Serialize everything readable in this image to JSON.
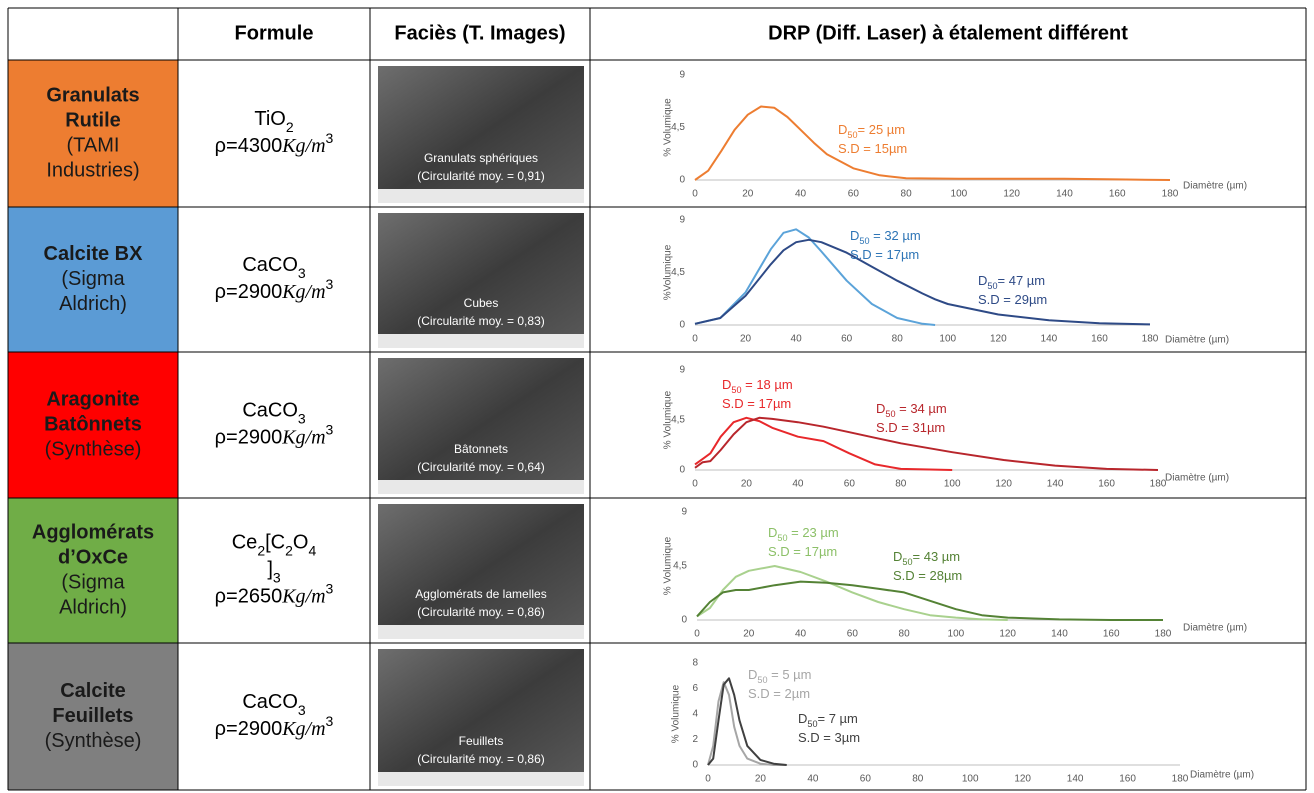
{
  "header": {
    "formula": "Formule",
    "facies": "Faciès (T. Images)",
    "drp": "DRP (Diff. Laser) à étalement différent"
  },
  "rows": [
    {
      "color": "#ed7d31",
      "name": [
        {
          "text": "Granulats",
          "bold": true
        },
        {
          "text": "Rutile",
          "bold": true
        },
        {
          "text": "(TAMI"
        },
        {
          "text": "Industries)"
        }
      ],
      "formula": [
        [
          {
            "text": "TiO"
          },
          {
            "text": "2",
            "sub": true
          }
        ]
      ],
      "density": [
        {
          "text": "ρ=4300"
        },
        {
          "text": "Kg/m",
          "italic": true
        },
        {
          "text": "3",
          "sup": true
        }
      ],
      "image_caption": [
        "Granulats sphériques",
        "(Circularité moy. = 0,91)"
      ],
      "chart": {
        "type": "line",
        "ylabel": "% Volumique",
        "xlabel": "Diamètre (µm)",
        "xlim": [
          0,
          180
        ],
        "xticks": [
          0,
          20,
          40,
          60,
          80,
          100,
          120,
          140,
          160,
          180
        ],
        "ylim": [
          0,
          9
        ],
        "yticks": [
          0,
          {
            "value": 4.5,
            "label": "4,5"
          },
          9
        ],
        "x": [
          0,
          5,
          10,
          15,
          20,
          25,
          30,
          35,
          40,
          45,
          50,
          60,
          70,
          80,
          100,
          120,
          140,
          160,
          180
        ],
        "series": [
          {
            "color": "#ed7d31",
            "values": [
              0,
              0.8,
              2.5,
              4.3,
              5.6,
              6.3,
              6.2,
              5.4,
              4.3,
              3.2,
              2.2,
              1.0,
              0.4,
              0.15,
              0.1,
              0.1,
              0.1,
              0.05,
              0
            ]
          }
        ],
        "annotations": [
          {
            "color": "#ed7d31",
            "lines": [
              [
                {
                  "text": "D"
                },
                {
                  "text": "50",
                  "sub": true
                },
                {
                  "text": "= 25 µm"
                }
              ],
              [
                {
                  "text": "S.D = 15µm"
                }
              ]
            ]
          }
        ]
      }
    },
    {
      "color": "#5b9bd5",
      "name": [
        {
          "text": "Calcite BX",
          "bold": true
        },
        {
          "text": "(Sigma"
        },
        {
          "text": "Aldrich)"
        }
      ],
      "formula": [
        [
          {
            "text": "CaCO"
          },
          {
            "text": "3",
            "sub": true
          }
        ]
      ],
      "density": [
        {
          "text": "ρ=2900"
        },
        {
          "text": "Kg/m",
          "italic": true
        },
        {
          "text": "3",
          "sup": true
        }
      ],
      "image_caption": [
        "Cubes",
        "(Circularité moy. = 0,83)"
      ],
      "chart": {
        "type": "line",
        "ylabel": "%Volumique",
        "xlabel": "Diamètre (µm)",
        "xlim": [
          0,
          180
        ],
        "xticks": [
          0,
          20,
          40,
          60,
          80,
          100,
          120,
          140,
          160,
          180
        ],
        "ylim": [
          0,
          9
        ],
        "yticks": [
          0,
          {
            "value": 4.5,
            "label": "4,5"
          },
          9
        ],
        "x": [
          0,
          10,
          20,
          30,
          35,
          40,
          45,
          50,
          60,
          70,
          80,
          90,
          95,
          100,
          120,
          140,
          160,
          180
        ],
        "series": [
          {
            "color": "#5ba3d9",
            "values": [
              0.1,
              0.6,
              2.8,
              6.5,
              7.9,
              8.2,
              7.5,
              6.3,
              3.8,
              1.8,
              0.6,
              0.1,
              0,
              null,
              null,
              null,
              null,
              null
            ]
          },
          {
            "color": "#2e4a86",
            "values": [
              0.1,
              0.6,
              2.5,
              5.2,
              6.4,
              7.1,
              7.3,
              7.1,
              6.2,
              5.0,
              3.8,
              2.7,
              2.2,
              1.8,
              0.9,
              0.4,
              0.15,
              0.05
            ]
          }
        ],
        "annotations": [
          {
            "color": "#2e75b6",
            "lines": [
              [
                {
                  "text": "D"
                },
                {
                  "text": "50",
                  "sub": true
                },
                {
                  "text": " = 32 µm"
                }
              ],
              [
                {
                  "text": "S.D = 17µm"
                }
              ]
            ]
          },
          {
            "color": "#2e4a86",
            "lines": [
              [
                {
                  "text": "D"
                },
                {
                  "text": "50",
                  "sub": true
                },
                {
                  "text": "= 47 µm"
                }
              ],
              [
                {
                  "text": "S.D = 29µm"
                }
              ]
            ]
          }
        ]
      }
    },
    {
      "color": "#ff0000",
      "name": [
        {
          "text": "Aragonite",
          "bold": true
        },
        {
          "text": "Batônnets",
          "bold": true
        },
        {
          "text": "(Synthèse)"
        }
      ],
      "formula": [
        [
          {
            "text": "CaCO"
          },
          {
            "text": "3",
            "sub": true
          }
        ]
      ],
      "density": [
        {
          "text": "ρ=2900"
        },
        {
          "text": "Kg/m",
          "italic": true
        },
        {
          "text": "3",
          "sup": true
        }
      ],
      "image_caption": [
        "Bâtonnets",
        "(Circularité moy. = 0,64)"
      ],
      "chart": {
        "type": "line",
        "ylabel": "% Volumique",
        "xlabel": "Diamètre (µm)",
        "xlim": [
          0,
          180
        ],
        "xticks": [
          0,
          20,
          40,
          60,
          80,
          100,
          120,
          140,
          160,
          180
        ],
        "ylim": [
          0,
          9
        ],
        "yticks": [
          0,
          {
            "value": 4.5,
            "label": "4,5"
          },
          9
        ],
        "x": [
          0,
          3,
          6,
          10,
          15,
          20,
          25,
          30,
          40,
          50,
          60,
          70,
          80,
          100,
          120,
          140,
          160,
          180
        ],
        "series": [
          {
            "color": "#e8282b",
            "values": [
              0.5,
              1.0,
              1.5,
              3.0,
              4.3,
              4.7,
              4.4,
              3.8,
              3.0,
              2.6,
              1.5,
              0.5,
              0.1,
              0,
              null,
              null,
              null,
              null
            ]
          },
          {
            "color": "#b8262c",
            "values": [
              0.2,
              0.7,
              0.8,
              1.8,
              3.2,
              4.3,
              4.7,
              4.6,
              4.3,
              3.9,
              3.4,
              2.9,
              2.4,
              1.6,
              0.9,
              0.4,
              0.1,
              0
            ]
          }
        ],
        "annotations": [
          {
            "color": "#e8282b",
            "lines": [
              [
                {
                  "text": "D"
                },
                {
                  "text": "50",
                  "sub": true
                },
                {
                  "text": " = 18 µm"
                }
              ],
              [
                {
                  "text": "S.D = 17µm"
                }
              ]
            ]
          },
          {
            "color": "#b8262c",
            "lines": [
              [
                {
                  "text": "D"
                },
                {
                  "text": "50",
                  "sub": true
                },
                {
                  "text": " = 34 µm"
                }
              ],
              [
                {
                  "text": "S.D = 31µm"
                }
              ]
            ]
          }
        ]
      }
    },
    {
      "color": "#70ad47",
      "name": [
        {
          "text": "Agglomérats",
          "bold": true
        },
        {
          "text": "d’OxCe",
          "bold": true
        },
        {
          "text": "(Sigma"
        },
        {
          "text": "Aldrich)"
        }
      ],
      "formula": [
        [
          {
            "text": "Ce"
          },
          {
            "text": "2",
            "sub": true
          },
          {
            "text": "[C"
          },
          {
            "text": "2",
            "sub": true
          },
          {
            "text": "O"
          },
          {
            "text": "4",
            "sub": true
          }
        ],
        [
          {
            "text": "]"
          },
          {
            "text": "3",
            "sub": true
          }
        ]
      ],
      "density": [
        {
          "text": "ρ=2650"
        },
        {
          "text": "Kg/m",
          "italic": true
        },
        {
          "text": "3",
          "sup": true
        }
      ],
      "image_caption": [
        "Agglomérats de lamelles",
        "(Circularité moy. = 0,86)"
      ],
      "chart": {
        "type": "line",
        "ylabel": "% Volumique",
        "xlabel": "Diamètre (µm)",
        "xlim": [
          0,
          180
        ],
        "xticks": [
          0,
          20,
          40,
          60,
          80,
          100,
          120,
          140,
          160,
          180
        ],
        "ylim": [
          0,
          9
        ],
        "yticks": [
          0,
          {
            "value": 4.5,
            "label": "4,5"
          },
          9
        ],
        "x": [
          0,
          5,
          10,
          15,
          20,
          30,
          40,
          50,
          60,
          70,
          80,
          90,
          100,
          110,
          120,
          140,
          160,
          180
        ],
        "series": [
          {
            "color": "#a9d18e",
            "values": [
              0.3,
              1.0,
              2.5,
              3.6,
              4.1,
              4.5,
              4.0,
              3.2,
              2.3,
              1.5,
              0.9,
              0.4,
              0.2,
              0.05,
              0,
              null,
              null,
              null
            ]
          },
          {
            "color": "#548235",
            "values": [
              0.3,
              1.5,
              2.3,
              2.5,
              2.5,
              2.9,
              3.2,
              3.1,
              2.9,
              2.6,
              2.3,
              1.6,
              0.9,
              0.4,
              0.2,
              0.05,
              0,
              0
            ]
          }
        ],
        "annotations": [
          {
            "color": "#8cc068",
            "lines": [
              [
                {
                  "text": "D"
                },
                {
                  "text": "50",
                  "sub": true
                },
                {
                  "text": " = 23 µm"
                }
              ],
              [
                {
                  "text": "S.D = 17µm"
                }
              ]
            ]
          },
          {
            "color": "#548235",
            "lines": [
              [
                {
                  "text": "D"
                },
                {
                  "text": "50",
                  "sub": true
                },
                {
                  "text": "= 43 µm"
                }
              ],
              [
                {
                  "text": "S.D = 28µm"
                }
              ]
            ]
          }
        ]
      }
    },
    {
      "color": "#7f7f7f",
      "name": [
        {
          "text": "Calcite",
          "bold": true
        },
        {
          "text": "Feuillets",
          "bold": true
        },
        {
          "text": "(Synthèse)"
        }
      ],
      "formula": [
        [
          {
            "text": "CaCO"
          },
          {
            "text": "3",
            "sub": true
          }
        ]
      ],
      "density": [
        {
          "text": "ρ=2900"
        },
        {
          "text": "Kg/m",
          "italic": true
        },
        {
          "text": "3",
          "sup": true
        }
      ],
      "image_caption": [
        "Feuillets",
        "(Circularité moy. = 0,86)"
      ],
      "chart": {
        "type": "line",
        "ylabel": "% Volumique",
        "xlabel": "Diamètre (µm)",
        "xlim": [
          0,
          180
        ],
        "xticks": [
          0,
          20,
          40,
          60,
          80,
          100,
          120,
          140,
          160,
          180
        ],
        "ylim": [
          0,
          8
        ],
        "yticks": [
          0,
          2,
          4,
          6,
          8
        ],
        "x": [
          0,
          2,
          4,
          6,
          8,
          10,
          12,
          15,
          20,
          25,
          30
        ],
        "series": [
          {
            "color": "#a6a6a6",
            "values": [
              0,
              1.5,
              5.0,
              6.5,
              5.5,
              3.0,
              1.5,
              0.5,
              0.1,
              0,
              0
            ]
          },
          {
            "color": "#404040",
            "values": [
              0,
              0.5,
              3.5,
              6.3,
              6.8,
              5.5,
              3.5,
              1.5,
              0.4,
              0.1,
              0
            ]
          }
        ],
        "annotations": [
          {
            "color": "#a6a6a6",
            "lines": [
              [
                {
                  "text": "D"
                },
                {
                  "text": "50",
                  "sub": true
                },
                {
                  "text": " = 5 µm"
                }
              ],
              [
                {
                  "text": "S.D = 2µm"
                }
              ]
            ]
          },
          {
            "color": "#404040",
            "lines": [
              [
                {
                  "text": "D"
                },
                {
                  "text": "50",
                  "sub": true
                },
                {
                  "text": "= 7 µm"
                }
              ],
              [
                {
                  "text": "S.D = 3µm"
                }
              ]
            ]
          }
        ]
      }
    }
  ]
}
